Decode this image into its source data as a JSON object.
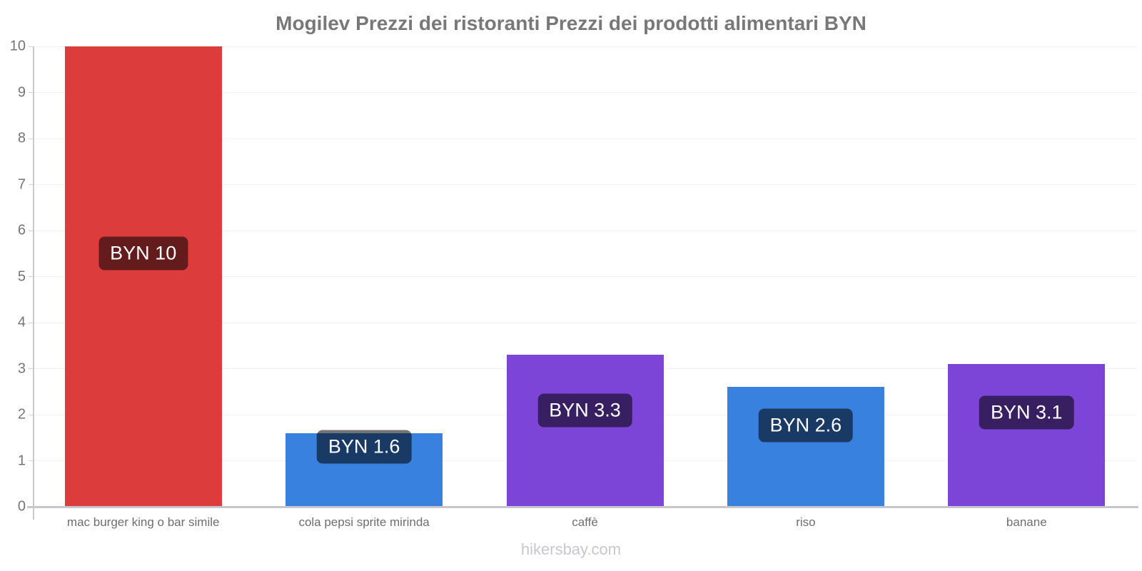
{
  "title": "Mogilev Prezzi dei ristoranti Prezzi dei prodotti alimentari BYN",
  "footer": "hikersbay.com",
  "currency": "BYN",
  "colors": {
    "title_text": "#787878",
    "axis_text": "#757575",
    "category_text": "#6e6e6e",
    "grid": "#f3f3f3",
    "axis_line": "#c9c9c9",
    "baseline": "#c6c6cc",
    "bar_red": "#dd3c3c",
    "bar_blue": "#3981de",
    "bar_purple": "#7c45d7",
    "value_label_bg": "rgba(0,0,0,0.55)",
    "value_label_text": "#ffffff",
    "footer_text": "#c7c7cf"
  },
  "chart_data": {
    "type": "bar",
    "title": "Mogilev Prezzi dei ristoranti Prezzi dei prodotti alimentari BYN",
    "xlabel": "",
    "ylabel": "",
    "categories": [
      "mac burger king o bar simile",
      "cola pepsi sprite mirinda",
      "caffè",
      "riso",
      "banane"
    ],
    "values": [
      10,
      1.6,
      3.3,
      2.6,
      3.1
    ],
    "bar_labels": [
      "BYN 10",
      "BYN 1.6",
      "BYN 3.3",
      "BYN 2.6",
      "BYN 3.1"
    ],
    "bar_colors": [
      "#dd3c3c",
      "#3981de",
      "#7c45d7",
      "#3981de",
      "#7c45d7"
    ],
    "label_center_values": [
      5.5,
      1.3,
      2.1,
      1.77,
      2.05
    ],
    "y_ticks": [
      0,
      1,
      2,
      3,
      4,
      5,
      6,
      7,
      8,
      9,
      10
    ],
    "ylim": [
      0,
      10
    ],
    "grid": true,
    "legend_position": "none",
    "watermark": "hikersbay.com"
  }
}
